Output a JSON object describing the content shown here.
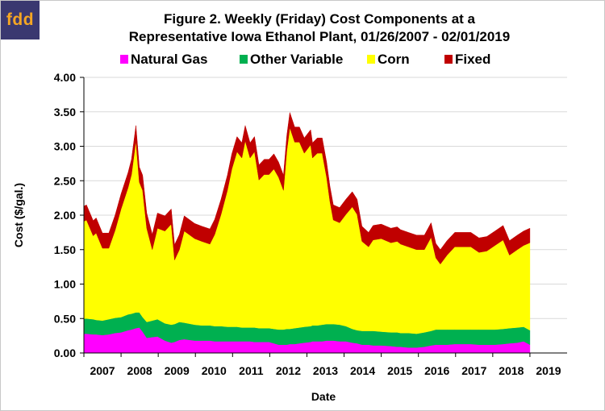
{
  "logo": {
    "text": "fdd"
  },
  "chart_data": {
    "type": "area",
    "stacked": true,
    "title": [
      "Figure 2. Weekly (Friday) Cost Components at a",
      "Representative  Iowa Ethanol Plant, 01/26/2007  - 02/01/2019"
    ],
    "xlabel": "Date",
    "ylabel": "Cost ($/gal.)",
    "xlim": [
      2007,
      2020
    ],
    "ylim": [
      0,
      4
    ],
    "yticks": [
      "0.00",
      "0.50",
      "1.00",
      "1.50",
      "2.00",
      "2.50",
      "3.00",
      "3.50",
      "4.00"
    ],
    "ytick_values": [
      0,
      0.5,
      1,
      1.5,
      2,
      2.5,
      3,
      3.5,
      4
    ],
    "xtick_labels": [
      "2007",
      "2008",
      "2009",
      "2010",
      "2011",
      "2012",
      "2013",
      "2014",
      "2015",
      "2016",
      "2017",
      "2018",
      "2019"
    ],
    "grid": "horizontal",
    "legend_position": "top",
    "x": [
      2007.0,
      2007.07,
      2007.25,
      2007.33,
      2007.5,
      2007.67,
      2007.84,
      2008.0,
      2008.19,
      2008.28,
      2008.4,
      2008.49,
      2008.58,
      2008.69,
      2008.84,
      2008.98,
      2009.18,
      2009.35,
      2009.44,
      2009.57,
      2009.7,
      2009.98,
      2010.17,
      2010.39,
      2010.52,
      2010.69,
      2010.86,
      2010.98,
      2011.12,
      2011.25,
      2011.34,
      2011.47,
      2011.59,
      2011.71,
      2011.85,
      2011.98,
      2012.11,
      2012.24,
      2012.37,
      2012.46,
      2012.54,
      2012.67,
      2012.8,
      2012.93,
      2013.1,
      2013.15,
      2013.28,
      2013.41,
      2013.53,
      2013.62,
      2013.71,
      2013.88,
      2014.05,
      2014.22,
      2014.35,
      2014.48,
      2014.66,
      2014.78,
      2015.0,
      2015.26,
      2015.43,
      2015.52,
      2015.73,
      2015.95,
      2016.16,
      2016.34,
      2016.47,
      2016.59,
      2016.77,
      2016.98,
      2017.2,
      2017.41,
      2017.63,
      2017.84,
      2018.06,
      2018.28,
      2018.45,
      2018.66,
      2018.83,
      2019.0
    ],
    "series": [
      {
        "name": "Natural Gas",
        "color": "#ff00ff",
        "values": [
          0.28,
          0.28,
          0.27,
          0.27,
          0.26,
          0.27,
          0.29,
          0.3,
          0.33,
          0.34,
          0.36,
          0.37,
          0.31,
          0.22,
          0.23,
          0.24,
          0.18,
          0.15,
          0.16,
          0.19,
          0.2,
          0.18,
          0.18,
          0.18,
          0.17,
          0.17,
          0.17,
          0.17,
          0.17,
          0.17,
          0.17,
          0.17,
          0.16,
          0.16,
          0.16,
          0.16,
          0.14,
          0.12,
          0.12,
          0.12,
          0.13,
          0.13,
          0.14,
          0.15,
          0.16,
          0.17,
          0.17,
          0.17,
          0.18,
          0.18,
          0.18,
          0.17,
          0.17,
          0.15,
          0.14,
          0.12,
          0.12,
          0.11,
          0.11,
          0.1,
          0.09,
          0.09,
          0.08,
          0.08,
          0.09,
          0.11,
          0.12,
          0.12,
          0.12,
          0.13,
          0.13,
          0.13,
          0.12,
          0.12,
          0.12,
          0.13,
          0.14,
          0.15,
          0.17,
          0.12
        ]
      },
      {
        "name": "Other Variable",
        "color": "#00b050",
        "values": [
          0.22,
          0.22,
          0.22,
          0.21,
          0.21,
          0.22,
          0.22,
          0.22,
          0.23,
          0.23,
          0.23,
          0.22,
          0.21,
          0.23,
          0.24,
          0.25,
          0.25,
          0.26,
          0.26,
          0.26,
          0.24,
          0.23,
          0.22,
          0.22,
          0.22,
          0.22,
          0.21,
          0.21,
          0.21,
          0.2,
          0.2,
          0.2,
          0.21,
          0.2,
          0.2,
          0.2,
          0.21,
          0.22,
          0.22,
          0.23,
          0.22,
          0.23,
          0.23,
          0.23,
          0.23,
          0.23,
          0.23,
          0.24,
          0.24,
          0.24,
          0.24,
          0.24,
          0.22,
          0.2,
          0.19,
          0.2,
          0.2,
          0.21,
          0.2,
          0.2,
          0.21,
          0.2,
          0.21,
          0.2,
          0.21,
          0.21,
          0.22,
          0.22,
          0.22,
          0.21,
          0.21,
          0.21,
          0.22,
          0.22,
          0.22,
          0.22,
          0.22,
          0.22,
          0.21,
          0.21
        ]
      },
      {
        "name": "Corn",
        "color": "#ffff00",
        "values": [
          1.41,
          1.43,
          1.21,
          1.26,
          1.05,
          1.03,
          1.27,
          1.57,
          1.84,
          2.02,
          2.49,
          1.89,
          1.84,
          1.36,
          1.03,
          1.32,
          1.34,
          1.46,
          0.93,
          1.05,
          1.33,
          1.25,
          1.22,
          1.18,
          1.33,
          1.62,
          1.98,
          2.29,
          2.54,
          2.46,
          2.71,
          2.46,
          2.55,
          2.15,
          2.23,
          2.23,
          2.32,
          2.21,
          2.02,
          2.59,
          2.92,
          2.7,
          2.69,
          2.52,
          2.63,
          2.43,
          2.5,
          2.49,
          2.13,
          1.78,
          1.51,
          1.48,
          1.62,
          1.77,
          1.68,
          1.3,
          1.22,
          1.32,
          1.35,
          1.3,
          1.32,
          1.29,
          1.25,
          1.22,
          1.2,
          1.36,
          1.04,
          0.95,
          1.08,
          1.2,
          1.2,
          1.2,
          1.12,
          1.14,
          1.22,
          1.29,
          1.06,
          1.13,
          1.18,
          1.27
        ]
      },
      {
        "name": "Fixed",
        "color": "#c00000",
        "values": [
          0.22,
          0.22,
          0.22,
          0.22,
          0.22,
          0.22,
          0.22,
          0.22,
          0.22,
          0.22,
          0.22,
          0.22,
          0.22,
          0.22,
          0.22,
          0.22,
          0.22,
          0.22,
          0.22,
          0.22,
          0.22,
          0.22,
          0.22,
          0.22,
          0.22,
          0.22,
          0.22,
          0.22,
          0.22,
          0.22,
          0.22,
          0.22,
          0.22,
          0.22,
          0.22,
          0.22,
          0.22,
          0.22,
          0.22,
          0.22,
          0.22,
          0.22,
          0.22,
          0.22,
          0.22,
          0.22,
          0.22,
          0.22,
          0.22,
          0.22,
          0.22,
          0.22,
          0.22,
          0.22,
          0.22,
          0.22,
          0.21,
          0.21,
          0.21,
          0.21,
          0.21,
          0.21,
          0.21,
          0.21,
          0.21,
          0.21,
          0.21,
          0.21,
          0.21,
          0.21,
          0.21,
          0.21,
          0.21,
          0.21,
          0.21,
          0.21,
          0.21,
          0.21,
          0.21,
          0.21
        ]
      }
    ]
  }
}
